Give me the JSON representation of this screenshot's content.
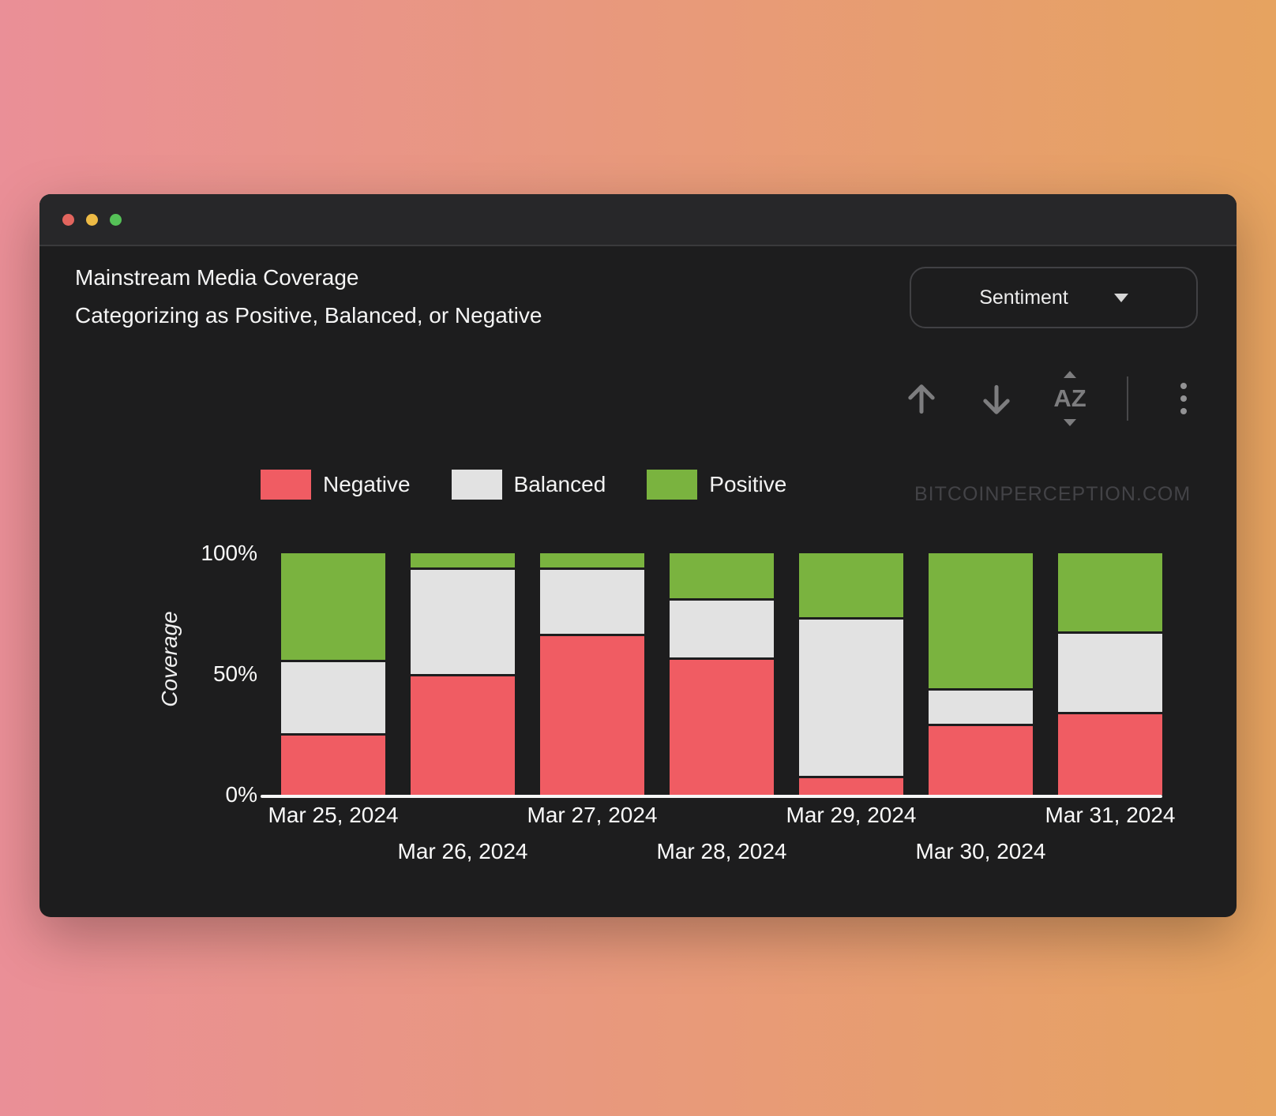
{
  "background": {
    "gradient_left": "#ea8f97",
    "gradient_right": "#e6a360"
  },
  "window": {
    "colors": {
      "titlebar": "#272729",
      "body": "#1d1d1e",
      "divider": "#3a3a3c"
    },
    "traffic_lights": [
      {
        "name": "close",
        "color": "#e2655e"
      },
      {
        "name": "minimize",
        "color": "#edba45"
      },
      {
        "name": "zoom",
        "color": "#55c157"
      }
    ]
  },
  "header": {
    "title": "Mainstream Media Coverage",
    "subtitle": "Categorizing as Positive, Balanced, or Negative",
    "sentiment_dropdown": {
      "label": "Sentiment"
    }
  },
  "toolbar": {
    "az_sort_letters": "AZ"
  },
  "watermark": "BITCOINPERCEPTION.COM",
  "chart_data": {
    "type": "bar",
    "stacked": true,
    "percent": true,
    "title": "Mainstream Media Coverage",
    "subtitle": "Categorizing as Positive, Balanced, or Negative",
    "ylabel": "Coverage",
    "xlabel": "",
    "ylim": [
      0,
      100
    ],
    "grid": false,
    "legend_position": "top-left",
    "categories": [
      "Mar 25, 2024",
      "Mar 26, 2024",
      "Mar 27, 2024",
      "Mar 28, 2024",
      "Mar 29, 2024",
      "Mar 30, 2024",
      "Mar 31, 2024"
    ],
    "series": [
      {
        "name": "Negative",
        "color": "#f05c63",
        "values": [
          25,
          50,
          67,
          57,
          7,
          29,
          34
        ]
      },
      {
        "name": "Balanced",
        "color": "#e2e2e2",
        "values": [
          30,
          44,
          27,
          24,
          66,
          14,
          33
        ]
      },
      {
        "name": "Positive",
        "color": "#7ab33f",
        "values": [
          45,
          6,
          6,
          19,
          27,
          57,
          33
        ]
      }
    ],
    "yticks": [
      {
        "label": "100%",
        "value": 100
      },
      {
        "label": "50%",
        "value": 50
      },
      {
        "label": "0%",
        "value": 0
      }
    ]
  }
}
